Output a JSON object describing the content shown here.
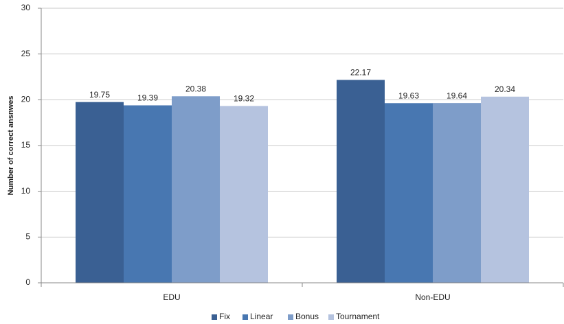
{
  "chart_data": {
    "type": "bar",
    "y_label": "Number of correct ansnwes",
    "categories": [
      "EDU",
      "Non-EDU"
    ],
    "series": [
      {
        "name": "Fix",
        "color": "#3a6093",
        "values": [
          19.75,
          22.17
        ]
      },
      {
        "name": "Linear",
        "color": "#4877b1",
        "values": [
          19.39,
          19.63
        ]
      },
      {
        "name": "Bonus",
        "color": "#7e9dc9",
        "values": [
          20.38,
          19.64
        ]
      },
      {
        "name": "Tournament",
        "color": "#b5c3df",
        "values": [
          19.32,
          20.34
        ]
      }
    ],
    "ylim": [
      0,
      30
    ],
    "yticks": [
      0,
      5,
      10,
      15,
      20,
      25,
      30
    ],
    "grid": true,
    "legend": "bottom"
  }
}
